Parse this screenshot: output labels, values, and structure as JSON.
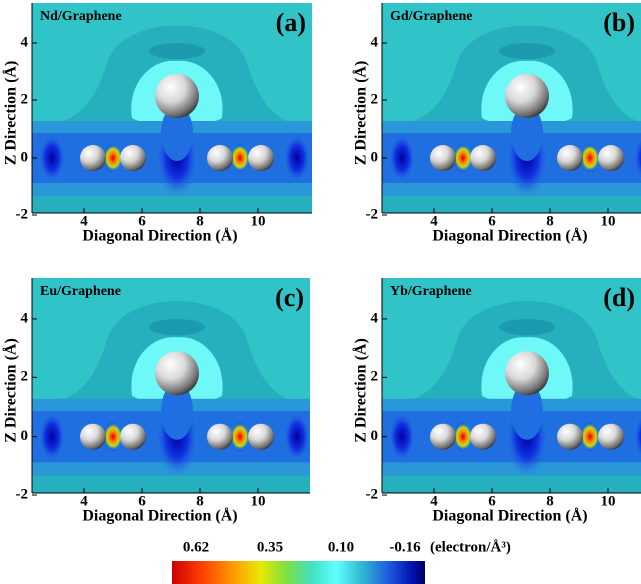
{
  "panels": [
    {
      "title": "Nd/Graphene",
      "label": "(a)",
      "x_label": "Diagonal Direction (Å)",
      "y_label": "Z Direction (Å)",
      "x_ticks": [
        "4",
        "6",
        "8",
        "10"
      ],
      "y_ticks": [
        "4",
        "2",
        "0",
        "-2"
      ]
    },
    {
      "title": "Gd/Graphene",
      "label": "(b)",
      "x_label": "Diagonal Direction (Å)",
      "y_label": "Z Direction (Å)",
      "x_ticks": [
        "4",
        "6",
        "8",
        "10"
      ],
      "y_ticks": [
        "4",
        "2",
        "0",
        "-2"
      ]
    },
    {
      "title": "Eu/Graphene",
      "label": "(c)",
      "x_label": "Diagonal Direction (Å)",
      "y_label": "Z Direction (Å)",
      "x_ticks": [
        "4",
        "6",
        "8",
        "10"
      ],
      "y_ticks": [
        "4",
        "2",
        "0",
        "-2"
      ]
    },
    {
      "title": "Yb/Graphene",
      "label": "(d)",
      "x_label": "Diagonal Direction (Å)",
      "y_label": "Z Direction (Å)",
      "x_ticks": [
        "4",
        "6",
        "8",
        "10"
      ],
      "y_ticks": [
        "4",
        "2",
        "0",
        "-2"
      ]
    }
  ],
  "colorbar": {
    "ticks": [
      "0.62",
      "0.35",
      "0.10",
      "-0.16"
    ],
    "unit": "(electron/Å³)"
  }
}
